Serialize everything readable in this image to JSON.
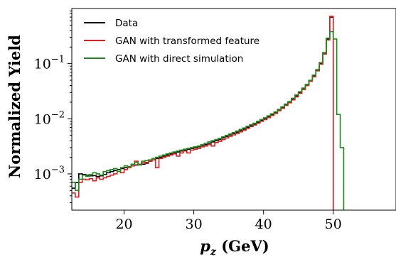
{
  "chart_data": {
    "type": "line",
    "xlabel": "p_z (GeV)",
    "ylabel": "Normalized Yield",
    "xlim": [
      12.5,
      59
    ],
    "ylim": [
      0.00022,
      1.0
    ],
    "yscale": "log",
    "xticks": [
      20,
      30,
      40,
      50
    ],
    "yticks": [
      {
        "value": 0.001,
        "base": "10",
        "exp": "−3"
      },
      {
        "value": 0.01,
        "base": "10",
        "exp": "−2"
      },
      {
        "value": 0.1,
        "base": "10",
        "exp": "−1"
      }
    ],
    "grid": false,
    "legend_position": "top-left",
    "bin_width": 0.5,
    "x": [
      12.5,
      13,
      13.5,
      14,
      14.5,
      15,
      15.5,
      16,
      16.5,
      17,
      17.5,
      18,
      18.5,
      19,
      19.5,
      20,
      20.5,
      21,
      21.5,
      22,
      22.5,
      23,
      23.5,
      24,
      24.5,
      25,
      25.5,
      26,
      26.5,
      27,
      27.5,
      28,
      28.5,
      29,
      29.5,
      30,
      30.5,
      31,
      31.5,
      32,
      32.5,
      33,
      33.5,
      34,
      34.5,
      35,
      35.5,
      36,
      36.5,
      37,
      37.5,
      38,
      38.5,
      39,
      39.5,
      40,
      40.5,
      41,
      41.5,
      42,
      42.5,
      43,
      43.5,
      44,
      44.5,
      45,
      45.5,
      46,
      46.5,
      47,
      47.5,
      48,
      48.5,
      49,
      49.5,
      50,
      50.5,
      51,
      51.5
    ],
    "series": [
      {
        "name": "Data",
        "color": "#000000",
        "values": [
          0.00055,
          0.0007,
          0.001,
          0.00098,
          0.00095,
          0.00092,
          0.00093,
          0.0009,
          0.00092,
          0.00098,
          0.00105,
          0.0011,
          0.00115,
          0.0012,
          0.00125,
          0.0013,
          0.00135,
          0.0014,
          0.00145,
          0.00148,
          0.0015,
          0.0016,
          0.0017,
          0.0018,
          0.0019,
          0.002,
          0.0021,
          0.0022,
          0.0023,
          0.0024,
          0.0025,
          0.0026,
          0.0027,
          0.0028,
          0.0029,
          0.003,
          0.0031,
          0.0033,
          0.0034,
          0.0036,
          0.0038,
          0.004,
          0.0042,
          0.0045,
          0.0048,
          0.0051,
          0.0054,
          0.0057,
          0.0061,
          0.0065,
          0.007,
          0.0075,
          0.008,
          0.0086,
          0.0093,
          0.01,
          0.011,
          0.012,
          0.013,
          0.0145,
          0.016,
          0.018,
          0.02,
          0.023,
          0.026,
          0.03,
          0.035,
          0.041,
          0.049,
          0.06,
          0.075,
          0.1,
          0.15,
          0.28,
          0.7,
          null,
          null,
          null,
          null
        ]
      },
      {
        "name": "GAN with transformed feature",
        "color": "#e41a1c",
        "values": [
          0.00045,
          0.00038,
          0.0007,
          0.0008,
          0.00078,
          0.00082,
          0.00075,
          0.00085,
          0.0008,
          0.00085,
          0.0009,
          0.00095,
          0.001,
          0.0011,
          0.00105,
          0.0012,
          0.0013,
          0.0014,
          0.0017,
          0.0015,
          0.0016,
          0.00155,
          0.0017,
          0.0018,
          0.0013,
          0.0019,
          0.002,
          0.0021,
          0.0022,
          0.0023,
          0.0021,
          0.0024,
          0.0026,
          0.0024,
          0.0027,
          0.0028,
          0.0029,
          0.0031,
          0.0032,
          0.0034,
          0.0032,
          0.0037,
          0.0039,
          0.0042,
          0.0045,
          0.0048,
          0.0051,
          0.0054,
          0.0058,
          0.0062,
          0.0067,
          0.0072,
          0.0077,
          0.0083,
          0.009,
          0.0097,
          0.0105,
          0.0115,
          0.0125,
          0.014,
          0.0155,
          0.0175,
          0.0195,
          0.022,
          0.025,
          0.029,
          0.034,
          0.04,
          0.048,
          0.058,
          0.074,
          0.098,
          0.15,
          0.27,
          0.72,
          null,
          null,
          null,
          null
        ]
      },
      {
        "name": "GAN with direct simulation",
        "color": "#1a8c1a",
        "values": [
          0.0007,
          0.0005,
          0.0008,
          0.00095,
          0.0009,
          0.00098,
          0.00105,
          0.001,
          0.00095,
          0.0011,
          0.00115,
          0.0012,
          0.00125,
          0.0011,
          0.0013,
          0.0014,
          0.00135,
          0.0015,
          0.0016,
          0.00145,
          0.0017,
          0.00175,
          0.0018,
          0.0019,
          0.002,
          0.0021,
          0.0022,
          0.0023,
          0.0024,
          0.0025,
          0.0026,
          0.0027,
          0.0028,
          0.0029,
          0.003,
          0.0031,
          0.0032,
          0.0034,
          0.0036,
          0.0038,
          0.004,
          0.0042,
          0.0044,
          0.0047,
          0.005,
          0.0053,
          0.0056,
          0.006,
          0.0064,
          0.0068,
          0.0073,
          0.0078,
          0.0083,
          0.009,
          0.0097,
          0.0104,
          0.0113,
          0.0123,
          0.0133,
          0.0148,
          0.0165,
          0.0185,
          0.0205,
          0.0235,
          0.027,
          0.031,
          0.036,
          0.042,
          0.05,
          0.062,
          0.078,
          0.105,
          0.16,
          0.29,
          0.38,
          0.28,
          0.012,
          0.003,
          null
        ]
      }
    ]
  }
}
